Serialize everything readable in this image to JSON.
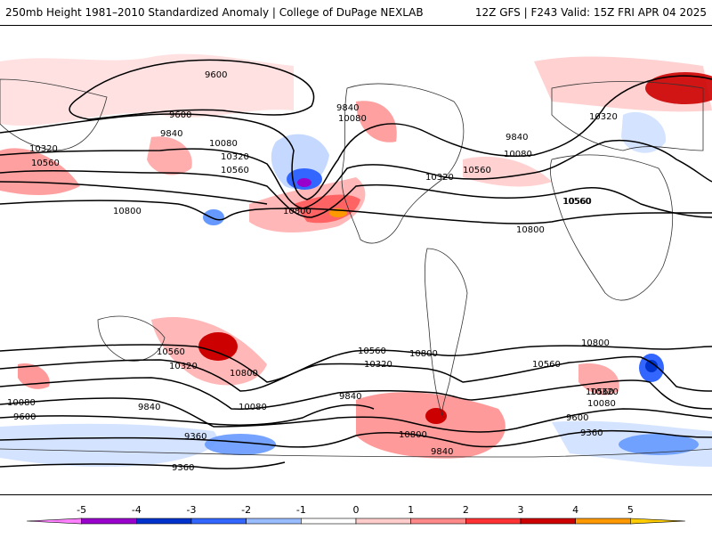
{
  "header": {
    "left_title": "250mb Height 1981–2010 Standardized Anomaly | College of DuPage NEXLAB",
    "right_title": "12Z GFS | F243 Valid: 15Z FRI APR 04 2025"
  },
  "colorbar": {
    "ticks": [
      "-5",
      "-4",
      "-3",
      "-2",
      "-1",
      "0",
      "1",
      "2",
      "3",
      "4",
      "5"
    ],
    "colors": [
      "#ff80ff",
      "#9900cc",
      "#0033cc",
      "#3366ff",
      "#99bbff",
      "#ffffff",
      "#ffcccc",
      "#ff8888",
      "#ff3333",
      "#cc0000",
      "#ff9900",
      "#ffcc00"
    ]
  },
  "map": {
    "contour_labels": [
      {
        "text": "9600"
      },
      {
        "text": "9600"
      },
      {
        "text": "9840"
      },
      {
        "text": "9840"
      },
      {
        "text": "10080"
      },
      {
        "text": "10080"
      },
      {
        "text": "10320"
      },
      {
        "text": "10320"
      },
      {
        "text": "10560"
      },
      {
        "text": "10560"
      },
      {
        "text": "10800"
      },
      {
        "text": "10800"
      },
      {
        "text": "10320"
      },
      {
        "text": "10560"
      },
      {
        "text": "9840"
      },
      {
        "text": "10080"
      },
      {
        "text": "10560"
      },
      {
        "text": "10800"
      },
      {
        "text": "10320"
      },
      {
        "text": "10560"
      },
      {
        "text": "10800"
      },
      {
        "text": "10800"
      },
      {
        "text": "10560"
      },
      {
        "text": "10320"
      },
      {
        "text": "10080"
      },
      {
        "text": "9840"
      },
      {
        "text": "9600"
      },
      {
        "text": "9360"
      },
      {
        "text": "9360"
      },
      {
        "text": "10800"
      },
      {
        "text": "10560"
      },
      {
        "text": "10320"
      },
      {
        "text": "9840"
      },
      {
        "text": "10080"
      },
      {
        "text": "9840"
      },
      {
        "text": "10560"
      },
      {
        "text": "10320"
      },
      {
        "text": "10080"
      },
      {
        "text": "9600"
      },
      {
        "text": "9360"
      },
      {
        "text": "10800"
      },
      {
        "text": "10560"
      }
    ]
  }
}
